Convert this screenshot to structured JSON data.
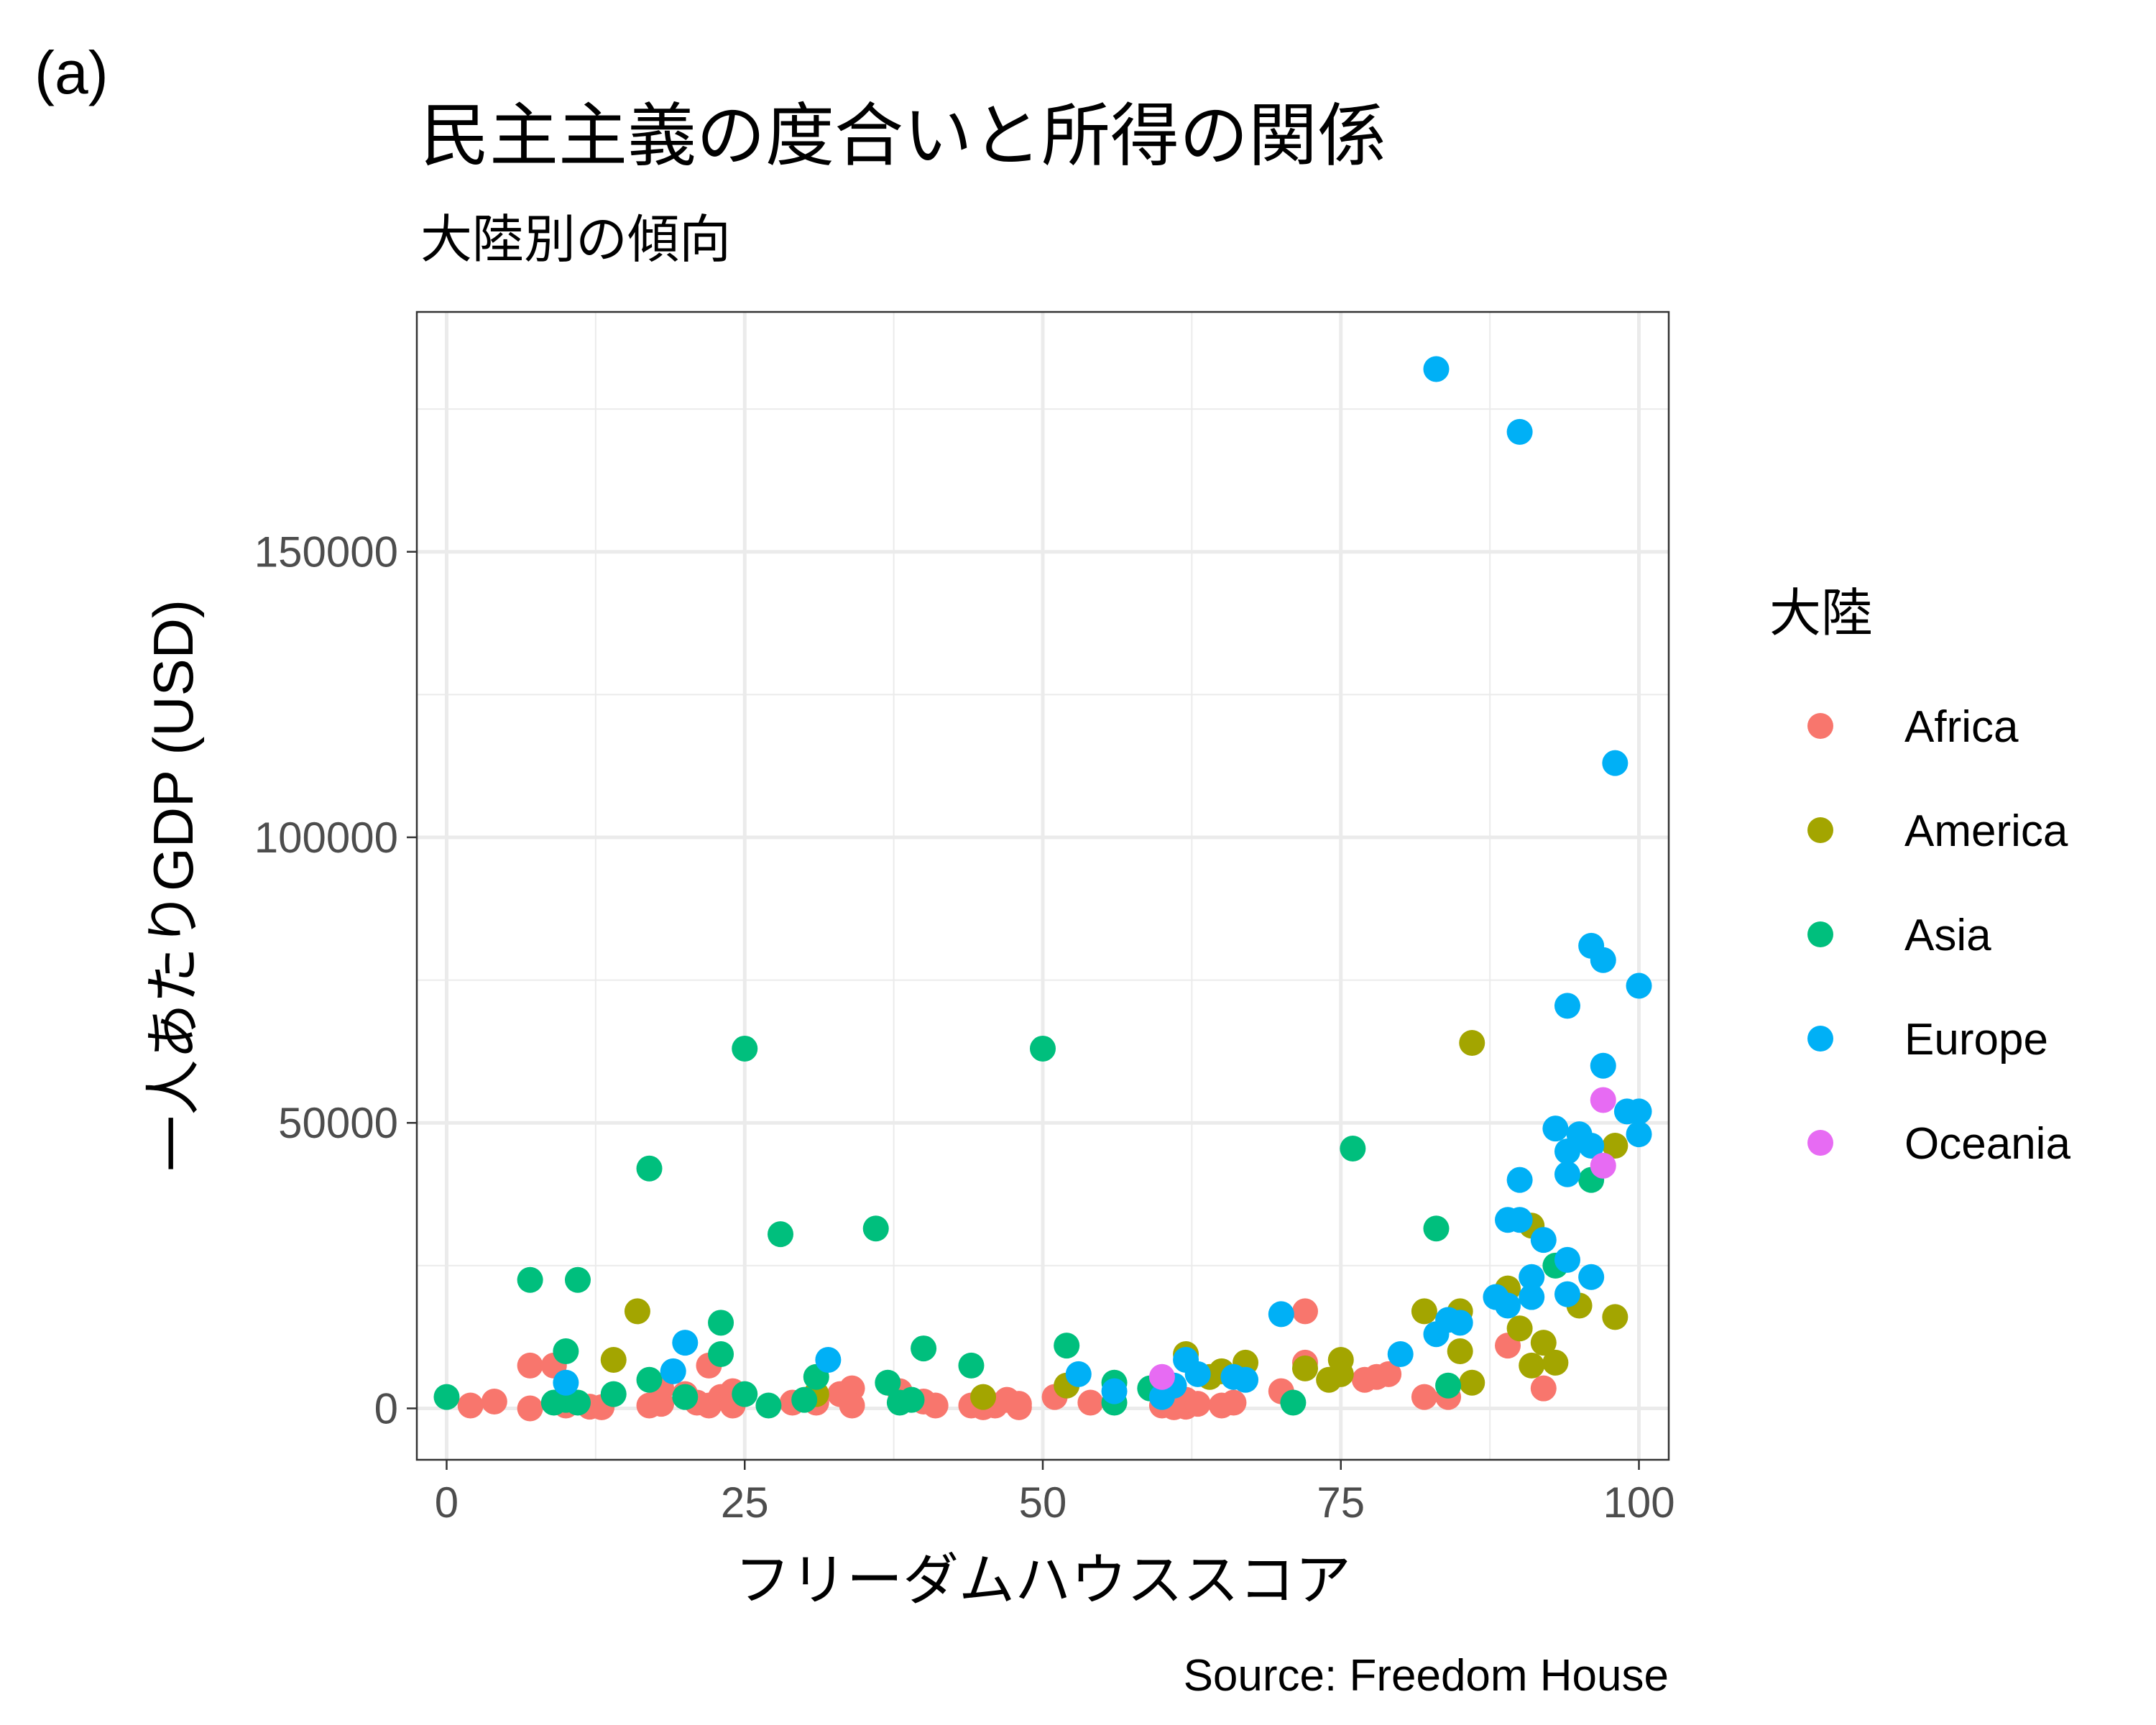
{
  "panel_label": "(a)",
  "chart_data": {
    "type": "scatter",
    "title": "民主主義の度合いと所得の関係",
    "subtitle": "大陸別の傾向",
    "xlabel": "フリーダムハウススコア",
    "ylabel": "一人あたりGDP (USD)",
    "caption": "Source: Freedom House",
    "xlim": [
      -2.5,
      102.5
    ],
    "ylim": [
      -9000,
      192000
    ],
    "xticks": [
      0,
      25,
      50,
      75,
      100
    ],
    "xtick_labels": [
      "0",
      "25",
      "50",
      "75",
      "100"
    ],
    "yticks": [
      0,
      50000,
      100000,
      150000
    ],
    "ytick_labels": [
      "0",
      "50000",
      "100000",
      "150000"
    ],
    "x_minor": [
      12.5,
      37.5,
      62.5,
      87.5
    ],
    "y_minor": [
      25000,
      75000,
      125000,
      175000
    ],
    "grid": true,
    "legend": {
      "title": "大陸",
      "position": "right",
      "entries": [
        "Africa",
        "America",
        "Asia",
        "Europe",
        "Oceania"
      ]
    },
    "colors": {
      "Africa": "#F8766D",
      "America": "#A3A500",
      "Asia": "#00BF7D",
      "Europe": "#00B0F6",
      "Oceania": "#E76BF3"
    },
    "series": [
      {
        "name": "Africa",
        "points": [
          [
            2,
            500
          ],
          [
            4,
            1200
          ],
          [
            7,
            7500
          ],
          [
            7,
            0
          ],
          [
            9,
            7500
          ],
          [
            10,
            500
          ],
          [
            12,
            300
          ],
          [
            13,
            200
          ],
          [
            17,
            500
          ],
          [
            18,
            800
          ],
          [
            18,
            3500
          ],
          [
            20,
            2500
          ],
          [
            21,
            1000
          ],
          [
            22,
            7500
          ],
          [
            22,
            500
          ],
          [
            23,
            2000
          ],
          [
            24,
            3000
          ],
          [
            24,
            500
          ],
          [
            29,
            1000
          ],
          [
            31,
            1000
          ],
          [
            33,
            2500
          ],
          [
            34,
            3500
          ],
          [
            34,
            500
          ],
          [
            38,
            3000
          ],
          [
            40,
            1200
          ],
          [
            41,
            500
          ],
          [
            44,
            500
          ],
          [
            45,
            200
          ],
          [
            46,
            500
          ],
          [
            47,
            1500
          ],
          [
            48,
            800
          ],
          [
            48,
            200
          ],
          [
            51,
            2000
          ],
          [
            54,
            1000
          ],
          [
            60,
            500
          ],
          [
            61,
            200
          ],
          [
            62,
            1500
          ],
          [
            62,
            300
          ],
          [
            63,
            800
          ],
          [
            65,
            500
          ],
          [
            66,
            1000
          ],
          [
            70,
            3000
          ],
          [
            72,
            17000
          ],
          [
            72,
            8000
          ],
          [
            77,
            5000
          ],
          [
            78,
            5500
          ],
          [
            79,
            6000
          ],
          [
            82,
            2000
          ],
          [
            84,
            2000
          ],
          [
            89,
            11000
          ],
          [
            92,
            3500
          ]
        ]
      },
      {
        "name": "America",
        "points": [
          [
            14,
            8500
          ],
          [
            16,
            17000
          ],
          [
            31,
            2500
          ],
          [
            45,
            2000
          ],
          [
            52,
            4000
          ],
          [
            62,
            9500
          ],
          [
            64,
            5500
          ],
          [
            65,
            6500
          ],
          [
            67,
            8000
          ],
          [
            72,
            7000
          ],
          [
            74,
            5000
          ],
          [
            75,
            8500
          ],
          [
            75,
            6000
          ],
          [
            82,
            17000
          ],
          [
            85,
            17000
          ],
          [
            85,
            10000
          ],
          [
            86,
            4500
          ],
          [
            86,
            64000
          ],
          [
            89,
            21000
          ],
          [
            90,
            14000
          ],
          [
            91,
            32000
          ],
          [
            91,
            7500
          ],
          [
            92,
            11500
          ],
          [
            93,
            8000
          ],
          [
            95,
            18000
          ],
          [
            98,
            46000
          ],
          [
            98,
            16000
          ]
        ]
      },
      {
        "name": "Asia",
        "points": [
          [
            0,
            2000
          ],
          [
            7,
            22500
          ],
          [
            9,
            1000
          ],
          [
            10,
            10000
          ],
          [
            10,
            1500
          ],
          [
            11,
            22500
          ],
          [
            11,
            1000
          ],
          [
            14,
            2500
          ],
          [
            17,
            42000
          ],
          [
            17,
            5000
          ],
          [
            20,
            2000
          ],
          [
            23,
            15000
          ],
          [
            23,
            9500
          ],
          [
            25,
            63000
          ],
          [
            25,
            2500
          ],
          [
            27,
            500
          ],
          [
            28,
            30500
          ],
          [
            30,
            1500
          ],
          [
            31,
            5500
          ],
          [
            36,
            31500
          ],
          [
            37,
            4500
          ],
          [
            38,
            1000
          ],
          [
            39,
            1500
          ],
          [
            40,
            10500
          ],
          [
            44,
            7500
          ],
          [
            50,
            63000
          ],
          [
            52,
            11000
          ],
          [
            56,
            4500
          ],
          [
            56,
            1000
          ],
          [
            59,
            3500
          ],
          [
            71,
            1000
          ],
          [
            76,
            45500
          ],
          [
            83,
            31500
          ],
          [
            84,
            4000
          ],
          [
            93,
            25000
          ],
          [
            96,
            40000
          ]
        ]
      },
      {
        "name": "Europe",
        "points": [
          [
            10,
            4500
          ],
          [
            19,
            6500
          ],
          [
            20,
            11500
          ],
          [
            32,
            8500
          ],
          [
            53,
            6000
          ],
          [
            56,
            3000
          ],
          [
            60,
            2000
          ],
          [
            61,
            4000
          ],
          [
            62,
            8500
          ],
          [
            63,
            6000
          ],
          [
            66,
            5500
          ],
          [
            67,
            5000
          ],
          [
            70,
            16500
          ],
          [
            80,
            9500
          ],
          [
            83,
            182000
          ],
          [
            83,
            13000
          ],
          [
            84,
            15500
          ],
          [
            85,
            15000
          ],
          [
            88,
            19500
          ],
          [
            89,
            33000
          ],
          [
            89,
            18000
          ],
          [
            90,
            171000
          ],
          [
            90,
            40000
          ],
          [
            90,
            33000
          ],
          [
            91,
            23000
          ],
          [
            91,
            19500
          ],
          [
            92,
            29500
          ],
          [
            93,
            49000
          ],
          [
            94,
            70500
          ],
          [
            94,
            45000
          ],
          [
            94,
            41000
          ],
          [
            94,
            26000
          ],
          [
            94,
            20000
          ],
          [
            95,
            48000
          ],
          [
            96,
            81000
          ],
          [
            96,
            46000
          ],
          [
            96,
            23000
          ],
          [
            97,
            78500
          ],
          [
            97,
            60000
          ],
          [
            98,
            113000
          ],
          [
            99,
            52000
          ],
          [
            100,
            74000
          ],
          [
            100,
            52000
          ],
          [
            100,
            48000
          ]
        ]
      },
      {
        "name": "Oceania",
        "points": [
          [
            60,
            5500
          ],
          [
            97,
            54000
          ],
          [
            97,
            42500
          ]
        ]
      }
    ]
  }
}
